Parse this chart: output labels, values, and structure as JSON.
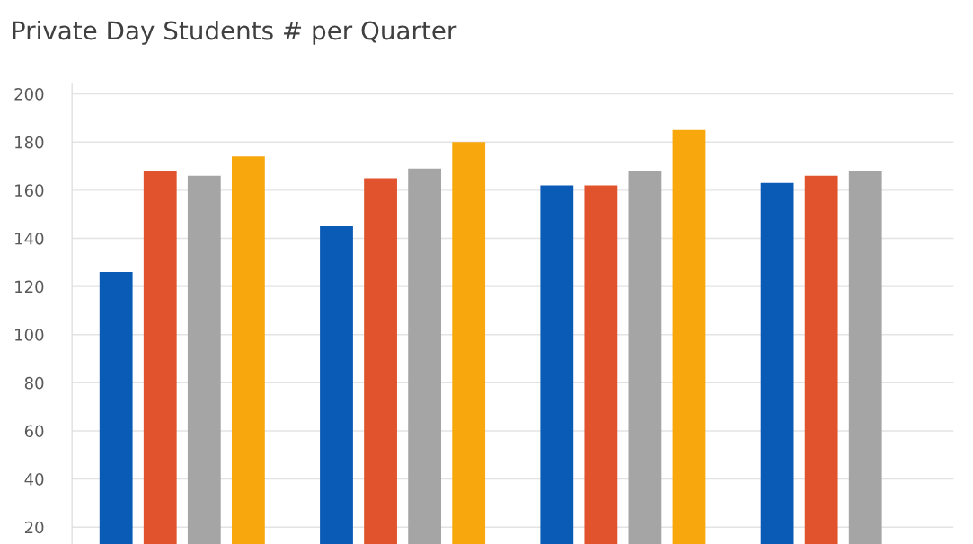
{
  "chart_data": {
    "type": "bar",
    "title": "Private Day Students # per Quarter",
    "categories": [
      null,
      null,
      null,
      null
    ],
    "series": [
      {
        "color": "#0a5bb5",
        "values": [
          126,
          145,
          162,
          163
        ]
      },
      {
        "color": "#e0532c",
        "values": [
          168,
          165,
          162,
          166
        ]
      },
      {
        "color": "#a5a5a5",
        "values": [
          166,
          169,
          168,
          168
        ]
      },
      {
        "color": "#f8a70c",
        "values": [
          174,
          180,
          185,
          null
        ]
      }
    ],
    "ylim": [
      13,
      204
    ],
    "yticks": [
      20,
      40,
      60,
      80,
      100,
      120,
      140,
      160,
      180,
      200
    ],
    "grid": "y"
  }
}
